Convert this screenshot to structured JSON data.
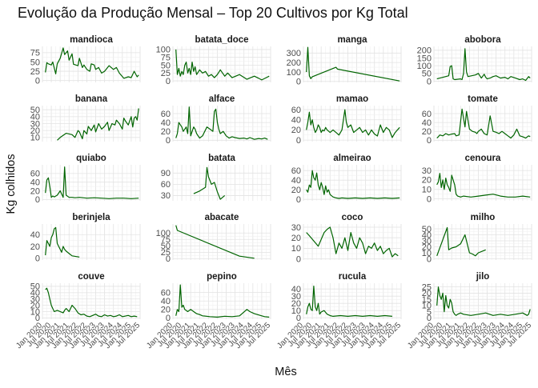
{
  "chart_data": {
    "type": "line",
    "title": "Evolução da Produção Mensal – Top 20 Cultivos por Kg Total",
    "xlabel": "Mês",
    "ylabel": "Kg colhidos",
    "x_tick_labels": [
      "Jan 2020",
      "Jul 2020",
      "Jan 2021",
      "Jul 2021",
      "Jan 2022",
      "Jul 2022",
      "Jan 2023",
      "Jul 2023",
      "Jan 2024",
      "Jul 2024",
      "Jan 2025",
      "Jul 2025"
    ],
    "x_range_months": [
      0,
      66
    ],
    "line_color": "#006400",
    "grid": true,
    "facets": [
      {
        "name": "mandioca",
        "yticks": [
          0,
          25,
          50,
          75
        ],
        "ylim": [
          -5,
          92
        ],
        "x": [
          2,
          3,
          4,
          6,
          7,
          9,
          10,
          12,
          14,
          15,
          17,
          18,
          20,
          21,
          24,
          25,
          27,
          28,
          30,
          32,
          33,
          35,
          36,
          38,
          40,
          42,
          45,
          48,
          50,
          52,
          55,
          58,
          60,
          62,
          64,
          65
        ],
        "y": [
          22,
          48,
          45,
          42,
          50,
          18,
          45,
          60,
          88,
          70,
          80,
          55,
          72,
          44,
          40,
          60,
          35,
          42,
          30,
          25,
          45,
          42,
          30,
          35,
          20,
          25,
          40,
          30,
          35,
          20,
          6,
          10,
          8,
          25,
          10,
          15
        ]
      },
      {
        "name": "batata_doce",
        "yticks": [
          0,
          25,
          50,
          75,
          100
        ],
        "ylim": [
          -5,
          110
        ],
        "x": [
          2,
          3,
          4,
          5,
          6,
          7,
          8,
          9,
          10,
          11,
          12,
          13,
          14,
          15,
          16,
          18,
          20,
          22,
          24,
          26,
          28,
          30,
          32,
          35,
          37,
          40,
          45,
          50,
          55,
          58,
          60,
          63,
          65
        ],
        "y": [
          100,
          20,
          40,
          15,
          30,
          20,
          50,
          60,
          25,
          40,
          20,
          60,
          30,
          45,
          20,
          35,
          25,
          30,
          15,
          20,
          10,
          20,
          35,
          15,
          25,
          10,
          20,
          5,
          15,
          8,
          3,
          10,
          15
        ]
      },
      {
        "name": "manga",
        "yticks": [
          0,
          100,
          200,
          300
        ],
        "ylim": [
          -10,
          370
        ],
        "x": [
          2,
          3,
          4,
          5,
          6,
          22,
          23,
          65
        ],
        "y": [
          100,
          360,
          60,
          30,
          50,
          150,
          130,
          5
        ]
      },
      {
        "name": "abobora",
        "yticks": [
          0,
          50,
          100,
          150,
          200
        ],
        "ylim": [
          -8,
          225
        ],
        "x": [
          2,
          8,
          10,
          11,
          12,
          13,
          14,
          18,
          19,
          20,
          21,
          22,
          23,
          28,
          30,
          32,
          34,
          35,
          36,
          38,
          40,
          42,
          45,
          48,
          50,
          52,
          55,
          58,
          60,
          62,
          64,
          65
        ],
        "y": [
          15,
          30,
          35,
          95,
          100,
          15,
          10,
          15,
          10,
          50,
          210,
          60,
          30,
          40,
          50,
          20,
          45,
          25,
          15,
          20,
          30,
          35,
          20,
          25,
          15,
          30,
          20,
          10,
          15,
          5,
          30,
          20
        ]
      },
      {
        "name": "banana",
        "yticks": [
          10,
          20,
          30,
          40,
          50
        ],
        "ylim": [
          4,
          56
        ],
        "x": [
          10,
          12,
          16,
          20,
          22,
          24,
          25,
          27,
          28,
          30,
          31,
          33,
          35,
          36,
          38,
          40,
          42,
          44,
          45,
          47,
          49,
          50,
          52,
          54,
          55,
          56,
          58,
          60,
          61,
          62,
          63,
          64,
          65
        ],
        "y": [
          6,
          10,
          16,
          14,
          10,
          20,
          18,
          8,
          20,
          15,
          26,
          20,
          28,
          18,
          30,
          22,
          26,
          32,
          20,
          30,
          28,
          35,
          30,
          22,
          38,
          34,
          28,
          40,
          25,
          38,
          40,
          35,
          52
        ]
      },
      {
        "name": "alface",
        "yticks": [
          0,
          20,
          40,
          60
        ],
        "ylim": [
          -3,
          78
        ],
        "x": [
          2,
          3,
          4,
          5,
          6,
          7,
          8,
          9,
          10,
          11,
          12,
          13,
          14,
          15,
          16,
          18,
          20,
          23,
          25,
          27,
          28,
          29,
          30,
          31,
          32,
          34,
          36,
          38,
          40,
          42,
          45,
          48,
          50,
          52,
          55,
          58,
          60,
          62,
          64
        ],
        "y": [
          5,
          15,
          40,
          35,
          30,
          20,
          25,
          30,
          15,
          75,
          10,
          20,
          30,
          25,
          15,
          5,
          10,
          30,
          25,
          20,
          65,
          70,
          40,
          25,
          15,
          20,
          10,
          5,
          8,
          6,
          4,
          5,
          3,
          6,
          2,
          4,
          3,
          5,
          2
        ]
      },
      {
        "name": "mamao",
        "yticks": [
          0,
          20,
          40,
          60
        ],
        "ylim": [
          -3,
          68
        ],
        "x": [
          2,
          3,
          4,
          5,
          6,
          7,
          8,
          9,
          10,
          11,
          12,
          13,
          14,
          15,
          16,
          18,
          20,
          22,
          24,
          26,
          28,
          29,
          30,
          32,
          34,
          36,
          38,
          40,
          42,
          44,
          45,
          46,
          48,
          50,
          52,
          54,
          56,
          58,
          60,
          62,
          65
        ],
        "y": [
          20,
          35,
          55,
          30,
          40,
          25,
          15,
          20,
          30,
          25,
          15,
          20,
          18,
          25,
          20,
          15,
          20,
          15,
          10,
          20,
          60,
          35,
          25,
          30,
          15,
          20,
          25,
          15,
          20,
          10,
          15,
          20,
          12,
          8,
          30,
          15,
          25,
          20,
          5,
          15,
          25
        ]
      },
      {
        "name": "tomate",
        "yticks": [
          0,
          20,
          40,
          60
        ],
        "ylim": [
          -3,
          78
        ],
        "x": [
          2,
          3,
          4,
          6,
          8,
          10,
          12,
          14,
          15,
          17,
          19,
          21,
          22,
          24,
          26,
          28,
          29,
          30,
          32,
          34,
          36,
          38,
          40,
          42,
          44,
          46,
          48,
          50,
          52,
          54,
          56,
          58,
          60,
          62,
          64,
          65
        ],
        "y": [
          5,
          8,
          12,
          10,
          15,
          12,
          14,
          15,
          10,
          12,
          70,
          30,
          65,
          25,
          20,
          18,
          15,
          20,
          25,
          15,
          12,
          55,
          20,
          18,
          15,
          20,
          15,
          10,
          5,
          12,
          25,
          10,
          8,
          5,
          10,
          8
        ]
      },
      {
        "name": "quiabo",
        "yticks": [
          0,
          20,
          40,
          60
        ],
        "ylim": [
          -3,
          80
        ],
        "x": [
          2,
          3,
          4,
          5,
          6,
          7,
          8,
          10,
          12,
          14,
          15,
          16,
          18,
          20,
          22,
          25,
          30,
          35,
          40,
          45,
          50,
          55,
          60,
          65
        ],
        "y": [
          15,
          45,
          50,
          30,
          5,
          8,
          6,
          10,
          20,
          5,
          75,
          10,
          5,
          5,
          4,
          5,
          3,
          4,
          3,
          2,
          3,
          3,
          2,
          3
        ]
      },
      {
        "name": "batata",
        "yticks": [
          30,
          60,
          90
        ],
        "ylim": [
          16,
          112
        ],
        "x": [
          14,
          18,
          22,
          23,
          24,
          26,
          28,
          30,
          32,
          35
        ],
        "y": [
          35,
          42,
          52,
          105,
          80,
          60,
          65,
          40,
          20,
          30
        ]
      },
      {
        "name": "almeirao",
        "yticks": [
          0,
          20,
          40,
          60
        ],
        "ylim": [
          -3,
          72
        ],
        "x": [
          2,
          3,
          4,
          5,
          6,
          7,
          8,
          9,
          10,
          11,
          12,
          13,
          14,
          15,
          16,
          17,
          18,
          20,
          22,
          24,
          26,
          30,
          35,
          40,
          45,
          50,
          55,
          60,
          65
        ],
        "y": [
          20,
          15,
          30,
          25,
          60,
          45,
          40,
          55,
          30,
          20,
          35,
          25,
          10,
          28,
          15,
          20,
          10,
          5,
          3,
          2,
          3,
          2,
          3,
          2,
          3,
          2,
          3,
          2,
          3
        ]
      },
      {
        "name": "cenoura",
        "yticks": [
          0,
          10,
          20,
          30
        ],
        "ylim": [
          -2,
          36
        ],
        "x": [
          2,
          3,
          4,
          5,
          6,
          7,
          8,
          9,
          10,
          11,
          12,
          13,
          14,
          15,
          16,
          18,
          20,
          25,
          30,
          35,
          40,
          45,
          50,
          55,
          60,
          65
        ],
        "y": [
          15,
          18,
          27,
          12,
          20,
          10,
          22,
          15,
          12,
          8,
          25,
          20,
          15,
          5,
          3,
          2,
          3,
          2,
          3,
          4,
          5,
          3,
          2,
          2,
          3,
          2
        ]
      },
      {
        "name": "berinjela",
        "yticks": [
          0,
          20,
          40
        ],
        "ylim": [
          -3,
          58
        ],
        "x": [
          2,
          3,
          4,
          5,
          6,
          7,
          8,
          9,
          10,
          11,
          12,
          13,
          14,
          15,
          16,
          18,
          20,
          25
        ],
        "y": [
          5,
          30,
          25,
          20,
          35,
          40,
          50,
          52,
          25,
          20,
          15,
          10,
          20,
          15,
          12,
          8,
          4,
          2
        ]
      },
      {
        "name": "abacate",
        "yticks": [
          0,
          25,
          50,
          75,
          100
        ],
        "ylim": [
          -5,
          135
        ],
        "x": [
          2,
          3,
          45,
          55
        ],
        "y": [
          130,
          110,
          10,
          2
        ]
      },
      {
        "name": "coco",
        "yticks": [
          0,
          10,
          20,
          30
        ],
        "ylim": [
          -1,
          33
        ],
        "x": [
          2,
          4,
          10,
          14,
          16,
          18,
          20,
          22,
          24,
          26,
          28,
          30,
          32,
          34,
          36,
          38,
          40,
          42,
          44,
          46,
          48,
          50,
          52,
          54,
          56,
          58,
          60,
          62,
          64
        ],
        "y": [
          25,
          22,
          12,
          25,
          28,
          30,
          20,
          5,
          15,
          10,
          20,
          8,
          25,
          15,
          10,
          20,
          15,
          5,
          12,
          10,
          15,
          8,
          12,
          5,
          8,
          10,
          2,
          5,
          3
        ]
      },
      {
        "name": "milho",
        "yticks": [
          0,
          10,
          20,
          30,
          40,
          50
        ],
        "ylim": [
          -2,
          58
        ],
        "x": [
          2,
          5,
          9,
          10,
          12,
          15,
          18,
          21,
          24,
          26,
          28,
          30,
          35
        ],
        "y": [
          5,
          25,
          52,
          15,
          18,
          20,
          25,
          40,
          10,
          8,
          5,
          10,
          15
        ]
      },
      {
        "name": "couve",
        "yticks": [
          0,
          10,
          20,
          30,
          40,
          50
        ],
        "ylim": [
          -2,
          55
        ],
        "x": [
          2,
          3,
          4,
          5,
          6,
          7,
          8,
          10,
          12,
          14,
          15,
          16,
          18,
          20,
          22,
          24,
          26,
          28,
          30,
          32,
          34,
          36,
          38,
          40,
          42,
          44,
          46,
          48,
          50,
          52,
          54,
          56,
          58,
          60,
          62,
          64
        ],
        "y": [
          45,
          47,
          40,
          30,
          20,
          15,
          10,
          12,
          10,
          8,
          12,
          15,
          10,
          20,
          15,
          8,
          5,
          6,
          3,
          2,
          4,
          6,
          3,
          2,
          5,
          3,
          4,
          2,
          3,
          5,
          2,
          3,
          4,
          2,
          3,
          2
        ]
      },
      {
        "name": "pepino",
        "yticks": [
          0,
          20,
          40,
          60
        ],
        "ylim": [
          -3,
          82
        ],
        "x": [
          2,
          3,
          4,
          5,
          6,
          7,
          8,
          10,
          12,
          14,
          16,
          18,
          20,
          25,
          30,
          35,
          40,
          45,
          50,
          52,
          55,
          60,
          62,
          65
        ],
        "y": [
          5,
          20,
          15,
          78,
          25,
          30,
          20,
          15,
          20,
          15,
          10,
          8,
          5,
          3,
          2,
          4,
          3,
          5,
          20,
          15,
          10,
          5,
          3,
          2
        ]
      },
      {
        "name": "rucula",
        "yticks": [
          0,
          10,
          20,
          30,
          40
        ],
        "ylim": [
          -2,
          48
        ],
        "x": [
          2,
          3,
          4,
          5,
          6,
          7,
          8,
          9,
          10,
          11,
          12,
          14,
          16,
          18,
          20,
          25,
          30,
          35,
          40,
          45,
          50,
          55,
          60
        ],
        "y": [
          5,
          15,
          20,
          12,
          10,
          44,
          15,
          10,
          20,
          5,
          8,
          10,
          5,
          3,
          2,
          3,
          2,
          3,
          2,
          3,
          2,
          3,
          2
        ]
      },
      {
        "name": "jilo",
        "yticks": [
          0,
          5,
          10,
          15,
          20,
          25
        ],
        "ylim": [
          -1,
          28
        ],
        "x": [
          2,
          3,
          4,
          5,
          6,
          7,
          8,
          9,
          10,
          11,
          12,
          13,
          14,
          15,
          16,
          18,
          20,
          25,
          30,
          35,
          40,
          45,
          50,
          55,
          60,
          63,
          64,
          65
        ],
        "y": [
          10,
          25,
          18,
          15,
          20,
          5,
          18,
          10,
          8,
          15,
          12,
          5,
          3,
          2,
          3,
          4,
          3,
          2,
          3,
          4,
          2,
          3,
          2,
          3,
          4,
          2,
          3,
          7
        ]
      }
    ]
  }
}
